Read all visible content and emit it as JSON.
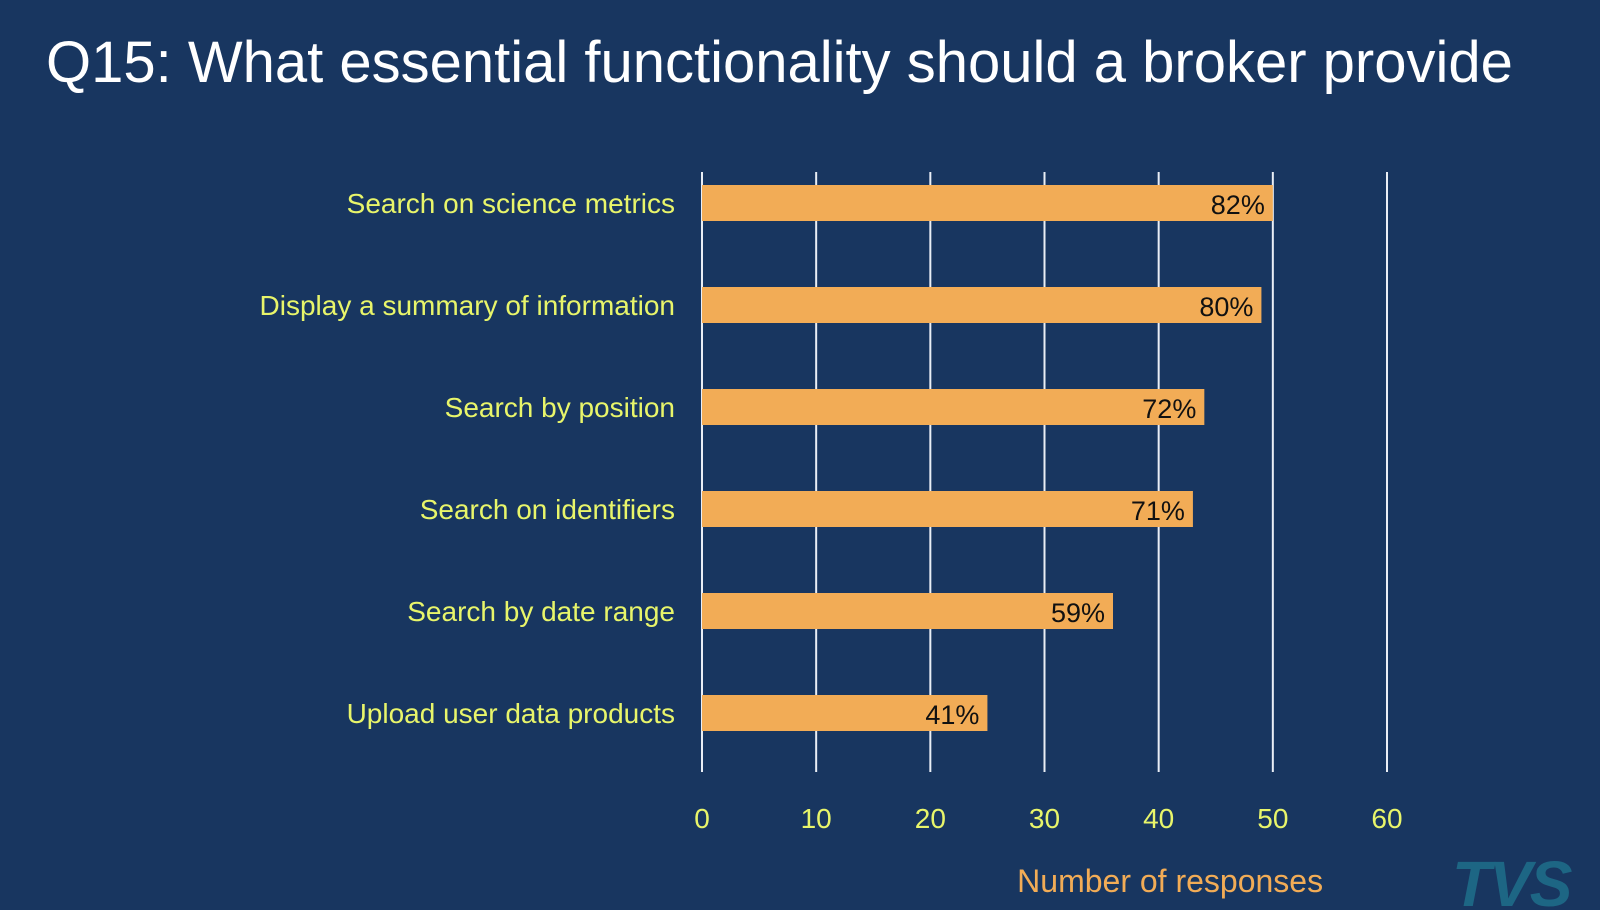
{
  "slide": {
    "title": "Q15: What essential functionality should a broker provide"
  },
  "chart_data": {
    "type": "bar",
    "orientation": "horizontal",
    "categories": [
      "Search on science metrics",
      "Display a summary of information",
      "Search by position",
      "Search on identifiers",
      "Search by date range",
      "Upload user data products"
    ],
    "values": [
      50,
      49,
      44,
      43,
      36,
      25
    ],
    "data_labels": [
      "82%",
      "80%",
      "72%",
      "71%",
      "59%",
      "41%"
    ],
    "xlabel": "Number of responses",
    "ylabel": "",
    "xlim": [
      0,
      60
    ],
    "xticks": [
      0,
      10,
      20,
      30,
      40,
      50,
      60
    ],
    "grid": true,
    "colors": {
      "bar": "#f2ac56",
      "category_label": "#e8f56a",
      "tick_label": "#e8f56a",
      "axis_title": "#f2ac56",
      "gridline": "#e9eef5",
      "data_label": "#111111"
    }
  },
  "logo": {
    "text": "TVS"
  }
}
